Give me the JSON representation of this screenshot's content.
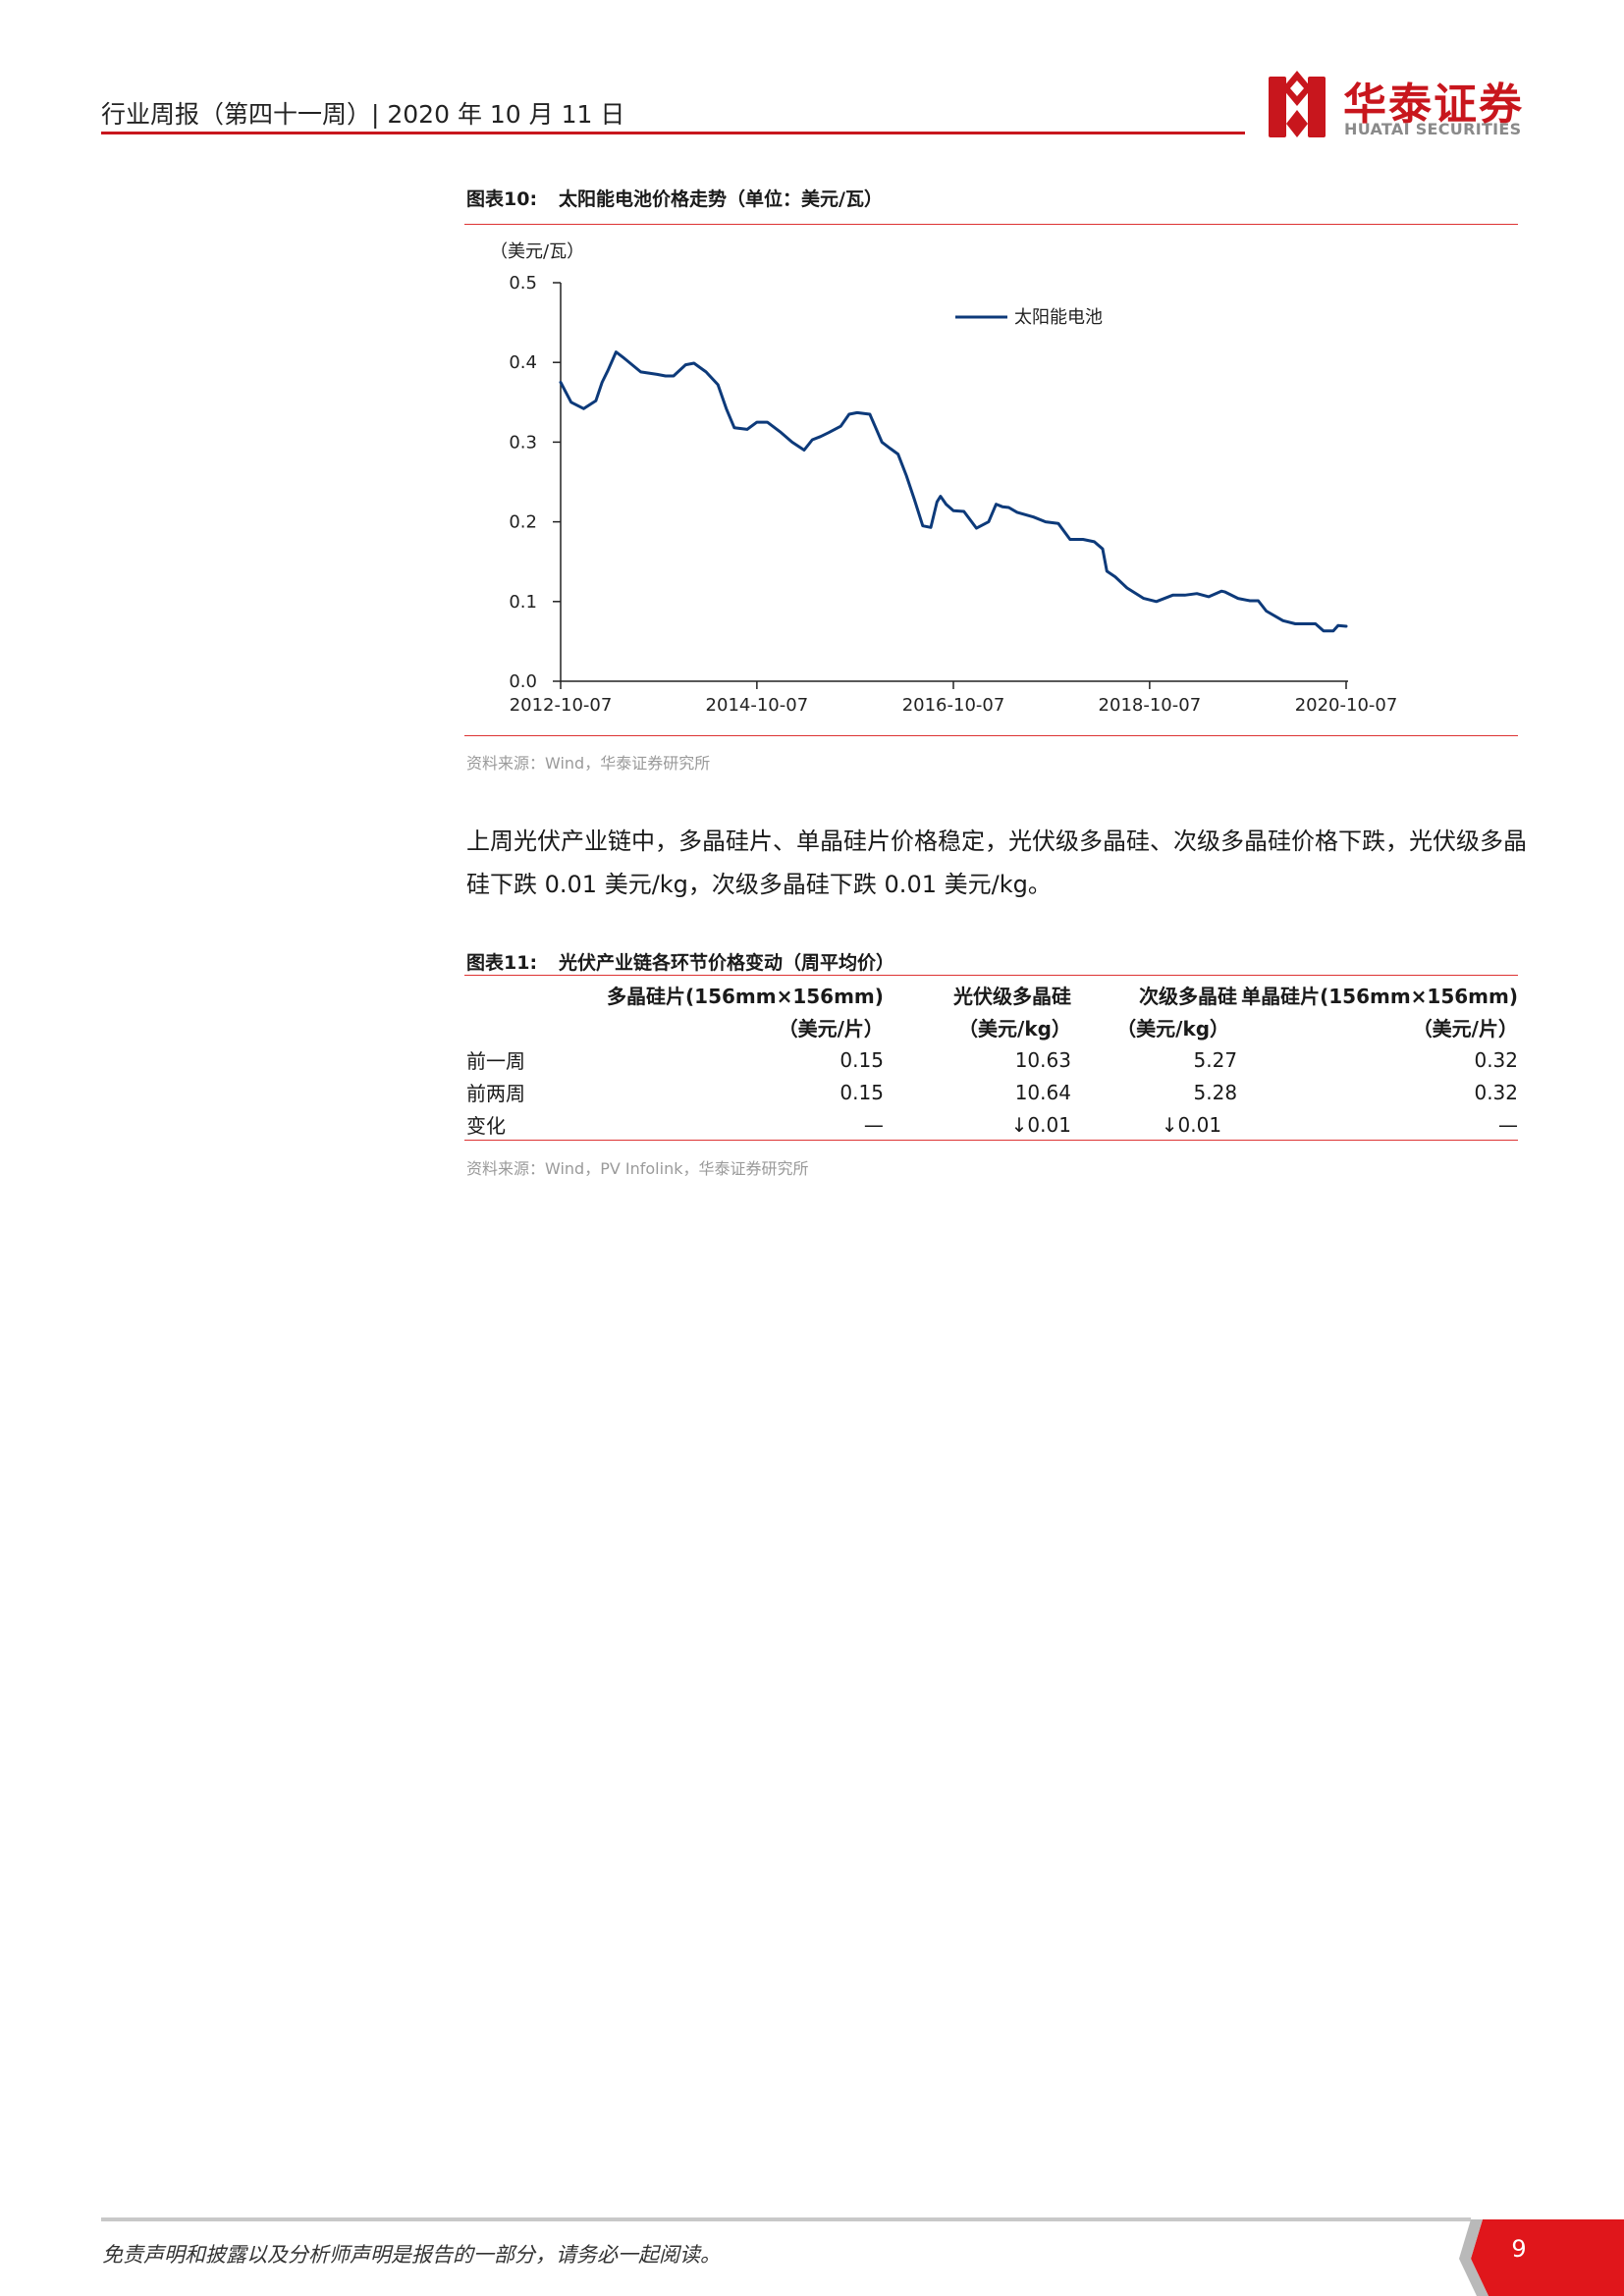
{
  "header": {
    "title": "行业周报（第四十一周）| 2020 年 10 月 11 日",
    "logo_cn": "华泰证券",
    "logo_en": "HUATAI SECURITIES",
    "accent_color": "#c8161d"
  },
  "figure10": {
    "caption_num": "图表10:",
    "caption_text": "太阳能电池价格走势（单位：美元/瓦）",
    "source": "资料来源：Wind，华泰证券研究所"
  },
  "chart_data": {
    "type": "line",
    "ylabel": "（美元/瓦）",
    "ylim": [
      0,
      0.5
    ],
    "yticks": [
      "0.5",
      "0.4",
      "0.3",
      "0.2",
      "0.1",
      "0.0"
    ],
    "xticks": [
      "2012-10-07",
      "2014-10-07",
      "2016-10-07",
      "2018-10-07",
      "2020-10-07"
    ],
    "legend_position": "top-right",
    "series": [
      {
        "name": "太阳能电池",
        "color": "#0d3a7a",
        "x": [
          "2012-10-07",
          "2012-11-15",
          "2013-01-01",
          "2013-02-15",
          "2013-03-10",
          "2013-04-01",
          "2013-05-01",
          "2013-06-01",
          "2013-08-01",
          "2013-10-01",
          "2013-11-01",
          "2013-12-01",
          "2014-01-15",
          "2014-02-15",
          "2014-04-01",
          "2014-05-15",
          "2014-06-15",
          "2014-07-15",
          "2014-09-01",
          "2014-10-07",
          "2014-11-15",
          "2015-01-01",
          "2015-02-15",
          "2015-04-01",
          "2015-05-01",
          "2015-06-01",
          "2015-07-01",
          "2015-08-15",
          "2015-09-15",
          "2015-10-15",
          "2015-12-01",
          "2016-01-15",
          "2016-02-15",
          "2016-03-15",
          "2016-04-15",
          "2016-05-15",
          "2016-06-15",
          "2016-07-15",
          "2016-08-07",
          "2016-08-20",
          "2016-09-10",
          "2016-10-07",
          "2016-11-15",
          "2017-01-01",
          "2017-02-15",
          "2017-03-15",
          "2017-04-07",
          "2017-05-01",
          "2017-06-01",
          "2017-08-01",
          "2017-09-15",
          "2017-11-01",
          "2017-12-15",
          "2018-02-01",
          "2018-03-15",
          "2018-04-15",
          "2018-05-01",
          "2018-06-01",
          "2018-07-15",
          "2018-09-15",
          "2018-11-01",
          "2019-01-01",
          "2019-02-15",
          "2019-04-01",
          "2019-05-15",
          "2019-07-01",
          "2019-07-15",
          "2019-09-01",
          "2019-10-15",
          "2019-11-15",
          "2019-12-15",
          "2020-02-15",
          "2020-04-01",
          "2020-05-15",
          "2020-06-15",
          "2020-07-15",
          "2020-08-07",
          "2020-08-20",
          "2020-09-07",
          "2020-10-07"
        ],
        "y": [
          0.375,
          0.35,
          0.342,
          0.352,
          0.375,
          0.39,
          0.413,
          0.405,
          0.388,
          0.385,
          0.383,
          0.383,
          0.397,
          0.399,
          0.388,
          0.372,
          0.342,
          0.318,
          0.316,
          0.325,
          0.325,
          0.313,
          0.3,
          0.29,
          0.303,
          0.307,
          0.312,
          0.32,
          0.335,
          0.337,
          0.335,
          0.3,
          0.292,
          0.285,
          0.258,
          0.228,
          0.195,
          0.193,
          0.225,
          0.232,
          0.222,
          0.214,
          0.213,
          0.192,
          0.2,
          0.222,
          0.219,
          0.218,
          0.212,
          0.206,
          0.2,
          0.198,
          0.178,
          0.178,
          0.175,
          0.166,
          0.138,
          0.131,
          0.117,
          0.104,
          0.1,
          0.108,
          0.108,
          0.11,
          0.106,
          0.113,
          0.112,
          0.104,
          0.101,
          0.101,
          0.088,
          0.076,
          0.072,
          0.072,
          0.072,
          0.063,
          0.063,
          0.063,
          0.07,
          0.069
        ]
      }
    ]
  },
  "paragraph": "上周光伏产业链中，多晶硅片、单晶硅片价格稳定，光伏级多晶硅、次级多晶硅价格下跌，光伏级多晶硅下跌 0.01 美元/kg，次级多晶硅下跌 0.01 美元/kg。",
  "figure11": {
    "caption_num": "图表11:",
    "caption_text": "光伏产业链各环节价格变动（周平均价）",
    "source": "资料来源：Wind，PV Infolink，华泰证券研究所",
    "headers": [
      "多晶硅片(156mm×156mm)",
      "光伏级多晶硅",
      "次级多晶硅",
      "单晶硅片(156mm×156mm)"
    ],
    "units": [
      "（美元/片）",
      "（美元/kg）",
      "（美元/kg）",
      "（美元/片）"
    ],
    "rows": [
      {
        "label": "前一周",
        "values": [
          "0.15",
          "10.63",
          "5.27",
          "0.32"
        ]
      },
      {
        "label": "前两周",
        "values": [
          "0.15",
          "10.64",
          "5.28",
          "0.32"
        ]
      },
      {
        "label": "变化",
        "values": [
          "—",
          "↓0.01",
          "↓0.01",
          "—"
        ]
      }
    ]
  },
  "footer": {
    "disclaimer": "免责声明和披露以及分析师声明是报告的一部分，请务必一起阅读。",
    "page_number": "9"
  }
}
